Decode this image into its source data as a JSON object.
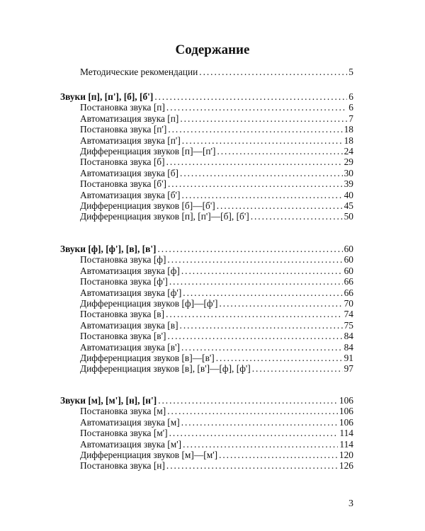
{
  "title": "Содержание",
  "intro": {
    "label": "Методические рекомендации",
    "page": "5"
  },
  "sections": [
    {
      "label": "Звуки [п], [п'], [б], [б']",
      "page": "6",
      "items": [
        {
          "label": "Постановка звука [п]",
          "page": "6"
        },
        {
          "label": "Автоматизация звука [п]",
          "page": "7"
        },
        {
          "label": "Постановка звука [п']",
          "page": "18"
        },
        {
          "label": "Автоматизация звука [п']",
          "page": "18"
        },
        {
          "label": "Дифференциация звуков [п]—[п']",
          "page": "24"
        },
        {
          "label": "Постановка звука [б]",
          "page": "29"
        },
        {
          "label": "Автоматизация звука [б]",
          "page": "30"
        },
        {
          "label": "Постановка звука [б']",
          "page": "39"
        },
        {
          "label": "Автоматизация звука [б']",
          "page": "40"
        },
        {
          "label": "Дифференциация звуков [б]—[б']",
          "page": "45"
        },
        {
          "label": "Дифференциация звуков [п], [п']—[б], [б']",
          "page": "50"
        }
      ]
    },
    {
      "label": "Звуки [ф], [ф'], [в], [в']",
      "page": "60",
      "items": [
        {
          "label": "Постановка звука [ф]",
          "page": "60"
        },
        {
          "label": "Автоматизация звука [ф]",
          "page": "60"
        },
        {
          "label": "Постановка звука [ф']",
          "page": "66"
        },
        {
          "label": "Автоматизация звука [ф']",
          "page": "66"
        },
        {
          "label": "Дифференциация звуков [ф]—[ф']",
          "page": "70"
        },
        {
          "label": "Постановка звука [в]",
          "page": "74"
        },
        {
          "label": "Автоматизация звука [в]",
          "page": "75"
        },
        {
          "label": "Постановка звука [в']",
          "page": "84"
        },
        {
          "label": "Автоматизация звука [в']",
          "page": "84"
        },
        {
          "label": "Дифференциация звуков [в]—[в']",
          "page": "91"
        },
        {
          "label": "Дифференциация звуков [в], [в']—[ф], [ф']",
          "page": "97"
        }
      ]
    },
    {
      "label": "Звуки [м], [м'], [н], [н']",
      "page": "106",
      "items": [
        {
          "label": "Постановка звука [м]",
          "page": "106"
        },
        {
          "label": "Автоматизация звука [м]",
          "page": "106"
        },
        {
          "label": "Постановка звука [м']",
          "page": "114"
        },
        {
          "label": "Автоматизация звука [м']",
          "page": "114"
        },
        {
          "label": "Дифференциация звуков [м]—[м']",
          "page": "120"
        },
        {
          "label": "Постановка звука [н]",
          "page": "126"
        }
      ]
    }
  ],
  "page_number": "3"
}
